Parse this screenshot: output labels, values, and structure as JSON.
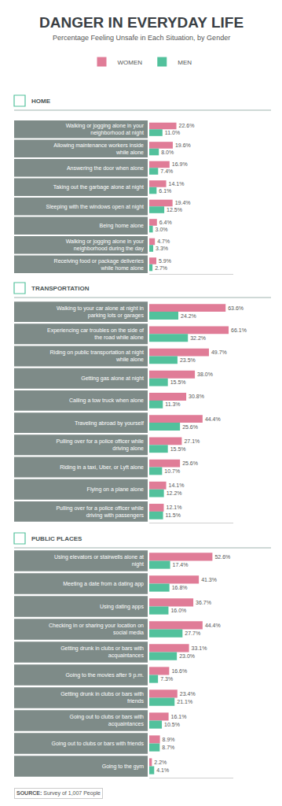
{
  "title": "DANGER IN EVERYDAY LIFE",
  "subtitle": "Percentage Feeling Unsafe in Each Situation, by Gender",
  "source_label": "SOURCE:",
  "source": "Survey of 1,007 People",
  "chart_data": [
    {
      "type": "bar",
      "title": "HOME",
      "orientation": "horizontal",
      "data_labels": true,
      "tick_labels": "y",
      "grid": false,
      "legend": "top",
      "xlim": [
        0,
        70
      ],
      "categories": [
        "Walking or jogging alone in your neighborhood at night",
        "Allowing maintenance workers inside while alone",
        "Answering the door when alone",
        "Taking out the garbage alone at night",
        "Sleeping with the windows open at night",
        "Being home alone",
        "Walking or jogging alone in your neighborhood during the day",
        "Receiving food or package deliveries while home alone"
      ],
      "series": [
        {
          "name": "WOMEN",
          "color": "#e07c97",
          "values": [
            22.6,
            19.6,
            16.9,
            14.1,
            19.4,
            6.4,
            4.7,
            5.9
          ],
          "value_labels": [
            "22.6%",
            "19.6%",
            "16.9%",
            "14.1%",
            "19.4%",
            "6.4%",
            "4.7%",
            "5.9%"
          ]
        },
        {
          "name": "MEN",
          "color": "#52c19c",
          "values": [
            11.0,
            8.0,
            7.4,
            6.1,
            12.5,
            3.0,
            3.3,
            2.7
          ],
          "value_labels": [
            "11.0%",
            "8.0%",
            "7.4%",
            "6.1%",
            "12.5%",
            "3.0%",
            "3.3%",
            "2.7%"
          ]
        }
      ]
    },
    {
      "type": "bar",
      "title": "TRANSPORTATION",
      "orientation": "horizontal",
      "data_labels": true,
      "tick_labels": "y",
      "grid": false,
      "xlim": [
        0,
        70
      ],
      "categories": [
        "Walking to your car alone at night in parking lots or garages",
        "Experiencing car troubles on the side of the road while alone",
        "Riding on public transportation at night while alone",
        "Getting gas alone at night",
        "Calling a tow truck when alone",
        "Traveling abroad by yourself",
        "Pulling over for a police officer while driving alone",
        "Riding in a taxi, Uber, or Lyft alone",
        "Flying on a plane alone",
        "Pulling over for a police officer while driving with passengers"
      ],
      "series": [
        {
          "name": "WOMEN",
          "color": "#e07c97",
          "values": [
            63.6,
            66.1,
            49.7,
            38.0,
            30.8,
            44.4,
            27.1,
            25.6,
            14.1,
            12.1
          ],
          "value_labels": [
            "63.6%",
            "66.1%",
            "49.7%",
            "38.0%",
            "30.8%",
            "44.4%",
            "27.1%",
            "25.6%",
            "14.1%",
            "12.1%"
          ]
        },
        {
          "name": "MEN",
          "color": "#52c19c",
          "values": [
            24.2,
            32.2,
            23.5,
            15.5,
            11.3,
            25.6,
            15.5,
            10.7,
            12.2,
            11.5
          ],
          "value_labels": [
            "24.2%",
            "32.2%",
            "23.5%",
            "15.5%",
            "11.3%",
            "25.6%",
            "15.5%",
            "10.7%",
            "12.2%",
            "11.5%"
          ]
        }
      ]
    },
    {
      "type": "bar",
      "title": "PUBLIC PLACES",
      "orientation": "horizontal",
      "data_labels": true,
      "tick_labels": "y",
      "grid": false,
      "xlim": [
        0,
        70
      ],
      "categories": [
        "Using elevators or stairwells alone at night",
        "Meeting a date from a dating app",
        "Using dating apps",
        "Checking in or sharing your location on social media",
        "Getting drunk in clubs or bars with acquaintances",
        "Going to the movies after 9 p.m.",
        "Getting drunk in clubs or bars with friends",
        "Going out to clubs or bars with acquaintances",
        "Going out to clubs or bars with friends",
        "Going to the gym"
      ],
      "series": [
        {
          "name": "WOMEN",
          "color": "#e07c97",
          "values": [
            52.6,
            41.3,
            36.7,
            44.4,
            33.1,
            16.6,
            23.4,
            16.1,
            8.9,
            2.2
          ],
          "value_labels": [
            "52.6%",
            "41.3%",
            "36.7%",
            "44.4%",
            "33.1%",
            "16.6%",
            "23.4%",
            "16.1%",
            "8.9%",
            "2.2%"
          ]
        },
        {
          "name": "MEN",
          "color": "#52c19c",
          "values": [
            17.4,
            16.8,
            16.0,
            27.7,
            23.0,
            7.3,
            21.1,
            10.5,
            8.7,
            4.1
          ],
          "value_labels": [
            "17.4%",
            "16.8%",
            "16.0%",
            "27.7%",
            "23.0%",
            "7.3%",
            "21.1%",
            "10.5%",
            "8.7%",
            "4.1%"
          ]
        }
      ]
    }
  ]
}
